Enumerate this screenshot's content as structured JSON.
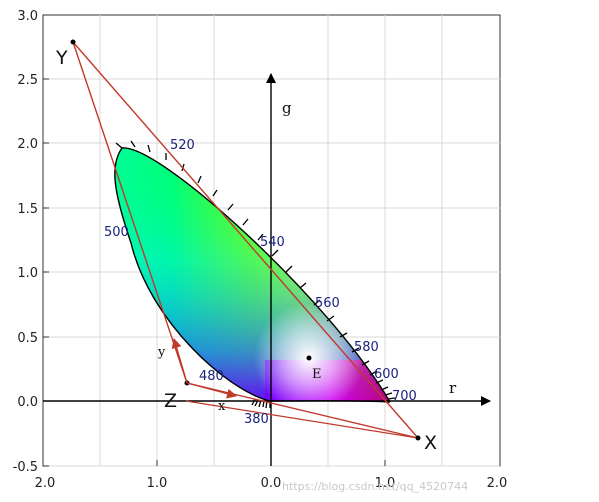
{
  "diagram": {
    "x_ticks": [
      "2.0",
      "1.0",
      "0.0",
      "1.0",
      "2.0"
    ],
    "y_ticks": [
      "3.0",
      "2.5",
      "2.0",
      "1.5",
      "1.0",
      "0.5",
      "0.0",
      "-0.5"
    ],
    "axis_labels": {
      "horizontal": "r",
      "vertical": "g"
    },
    "primaries": {
      "X": "X",
      "Y": "Y",
      "Z": "Z"
    },
    "white_point": "E",
    "xyz_vectors": {
      "x": "x",
      "y": "y"
    },
    "wavelength_labels": [
      "380",
      "480",
      "500",
      "520",
      "540",
      "560",
      "580",
      "600",
      "700"
    ],
    "watermark": "https://blog.csdn.net/qq_4520744",
    "colors": {
      "triangle": "#c0392b",
      "grid": "#d9d9d9",
      "axes": "#000000",
      "wavelength_text": "#1a237e"
    }
  }
}
